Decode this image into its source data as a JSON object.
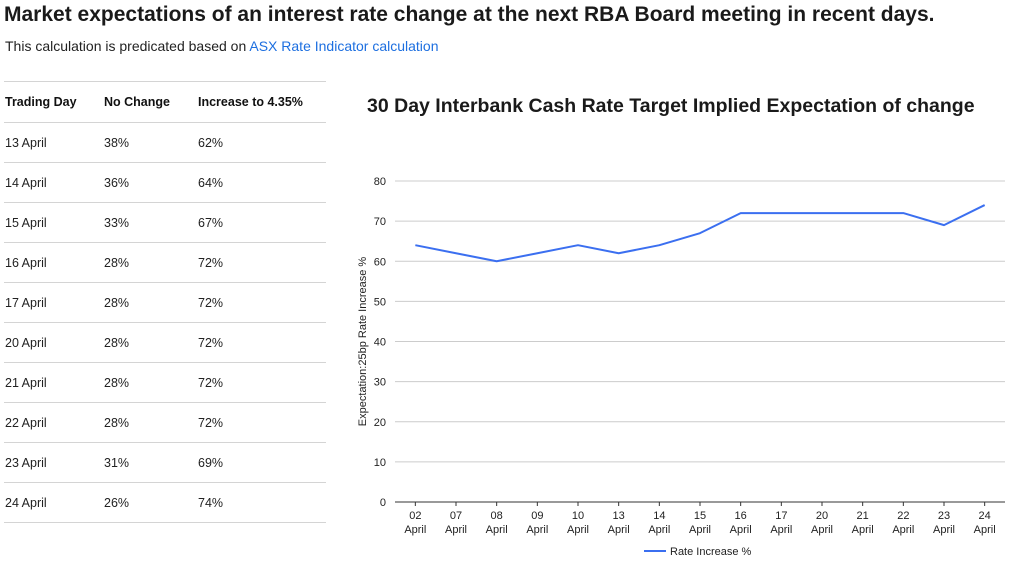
{
  "page": {
    "title": "Market expectations of an interest rate change at the next RBA Board meeting in recent days.",
    "intro_text": "This calculation is predicated based on ",
    "intro_link": "ASX Rate Indicator calculation"
  },
  "table": {
    "headers": [
      "Trading Day",
      "No Change",
      "Increase to 4.35%"
    ],
    "rows": [
      [
        "13 April",
        "38%",
        "62%"
      ],
      [
        "14 April",
        "36%",
        "64%"
      ],
      [
        "15 April",
        "33%",
        "67%"
      ],
      [
        "16 April",
        "28%",
        "72%"
      ],
      [
        "17 April",
        "28%",
        "72%"
      ],
      [
        "20 April",
        "28%",
        "72%"
      ],
      [
        "21 April",
        "28%",
        "72%"
      ],
      [
        "22 April",
        "28%",
        "72%"
      ],
      [
        "23 April",
        "31%",
        "69%"
      ],
      [
        "24 April",
        "26%",
        "74%"
      ]
    ]
  },
  "chart_data": {
    "type": "line",
    "title": "30 Day Interbank Cash Rate Target Implied Expectation of change",
    "categories": [
      [
        "02",
        "April"
      ],
      [
        "07",
        "April"
      ],
      [
        "08",
        "April"
      ],
      [
        "09",
        "April"
      ],
      [
        "10",
        "April"
      ],
      [
        "13",
        "April"
      ],
      [
        "14",
        "April"
      ],
      [
        "15",
        "April"
      ],
      [
        "16",
        "April"
      ],
      [
        "17",
        "April"
      ],
      [
        "20",
        "April"
      ],
      [
        "21",
        "April"
      ],
      [
        "22",
        "April"
      ],
      [
        "23",
        "April"
      ],
      [
        "24",
        "April"
      ]
    ],
    "series": [
      {
        "name": "Rate Increase %",
        "color": "#3b6ff0",
        "values": [
          64,
          62,
          60,
          62,
          64,
          62,
          64,
          67,
          72,
          72,
          72,
          72,
          72,
          69,
          74
        ]
      }
    ],
    "xlabel": "",
    "ylabel": "Expectation:25bp Rate Increase %",
    "ylim": [
      0,
      80
    ],
    "yticks": [
      0,
      10,
      20,
      30,
      40,
      50,
      60,
      70,
      80
    ],
    "grid": true,
    "legend": "bottom"
  }
}
